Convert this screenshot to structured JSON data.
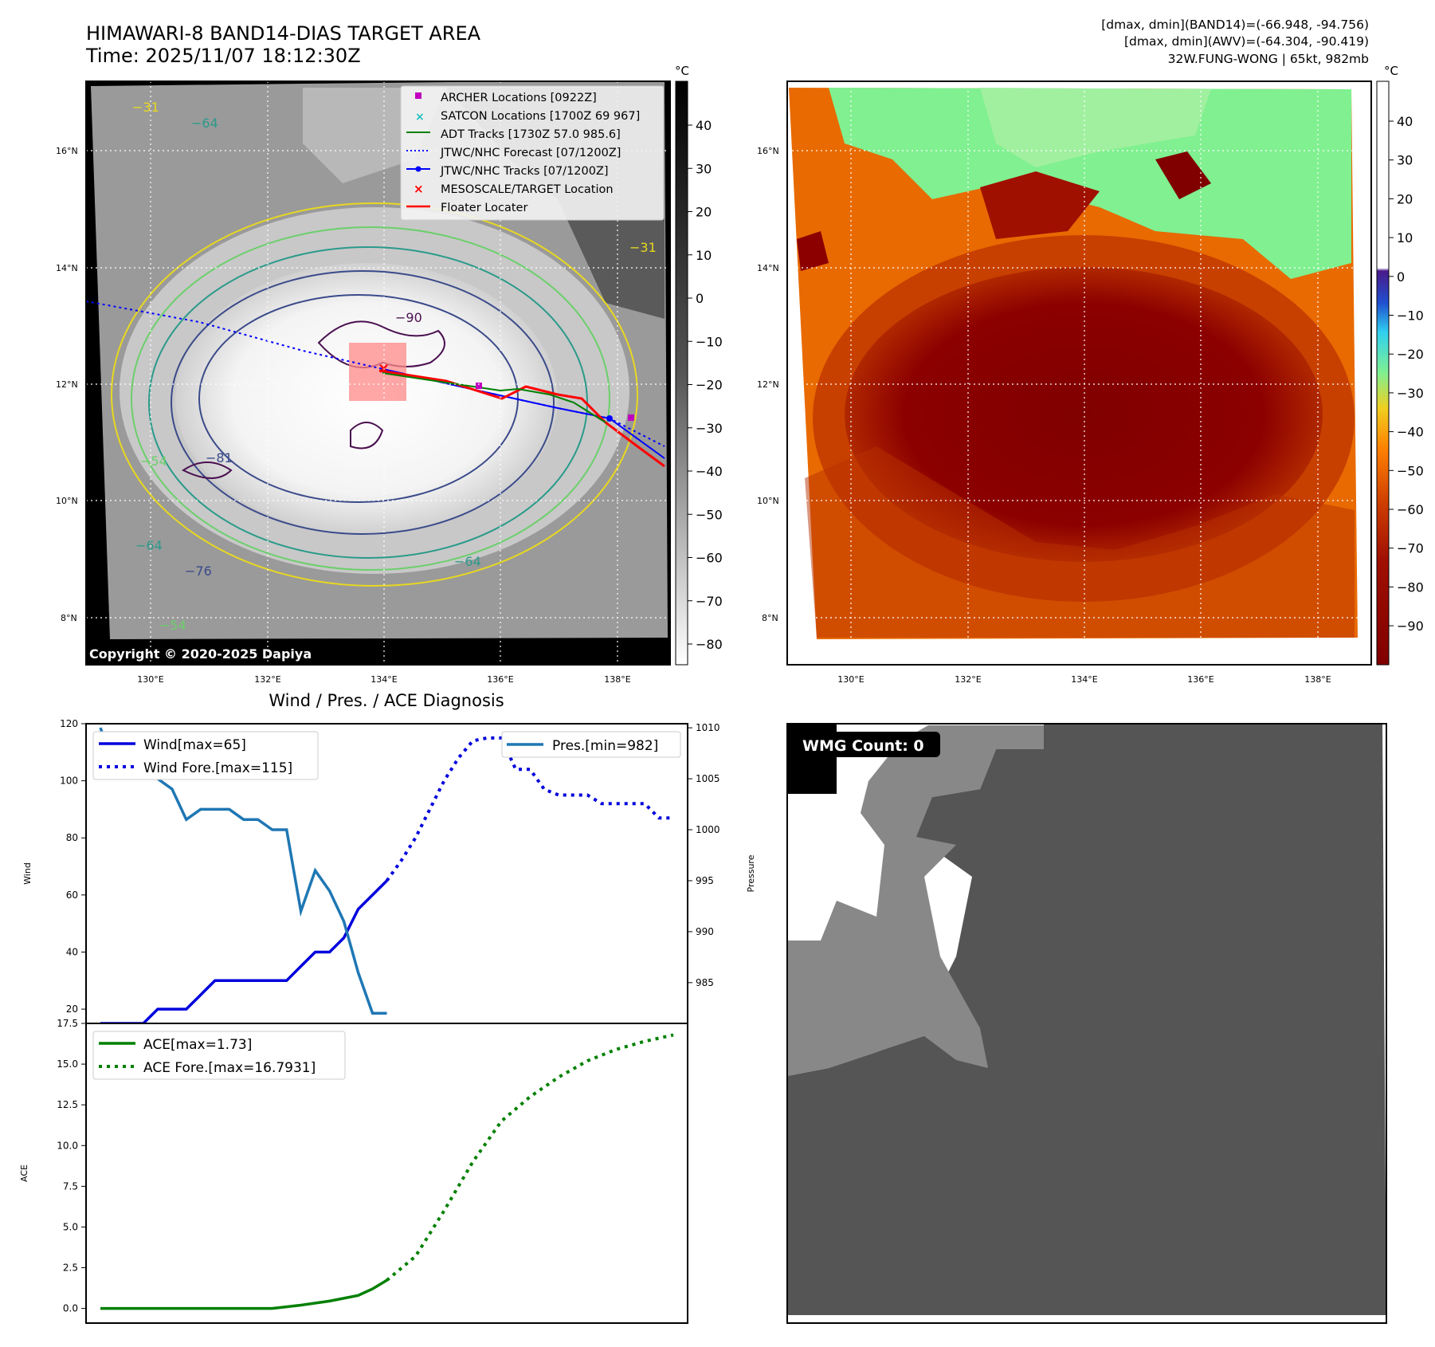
{
  "header": {
    "title": "HIMAWARI-8 BAND14-DIAS TARGET AREA",
    "time": "Time: 2025/11/07 18:12:30Z",
    "info": [
      "[dmax, dmin](BAND14)=(-66.948, -94.756)",
      "[dmax, dmin](AWV)=(-64.304, -90.419)",
      "32W.FUNG-WONG | 65kt, 982mb"
    ]
  },
  "map": {
    "lat_ticks": [
      "16°N",
      "14°N",
      "12°N",
      "10°N",
      "8°N"
    ],
    "lon_ticks": [
      "130°E",
      "132°E",
      "134°E",
      "136°E",
      "138°E"
    ],
    "contour_labels": [
      "−90",
      "−64",
      "−64",
      "−76",
      "−54",
      "−54",
      "−64",
      "−81",
      "−31",
      "−31"
    ],
    "copyright": "Copyright © 2020-2025 Dapiya",
    "legend": [
      {
        "label": "ARCHER Locations [0922Z]",
        "marker": "square",
        "color": "#c000c0"
      },
      {
        "label": "SATCON Locations [1700Z 69 967]",
        "marker": "x",
        "color": "#20c0c0"
      },
      {
        "label": "ADT Tracks [1730Z 57.0 985.6]",
        "marker": "line",
        "color": "#008000"
      },
      {
        "label": "JTWC/NHC Forecast [07/1200Z]",
        "marker": "dotted",
        "color": "#0000ff"
      },
      {
        "label": "JTWC/NHC Tracks [07/1200Z]",
        "marker": "line-dot",
        "color": "#0000ff"
      },
      {
        "label": "MESOSCALE/TARGET Location",
        "marker": "x",
        "color": "#ff0000"
      },
      {
        "label": "Floater Locater",
        "marker": "line",
        "color": "#ff0000"
      }
    ],
    "gray_colorbar": {
      "unit": "°C",
      "ticks": [
        "40",
        "30",
        "20",
        "10",
        "0",
        "−10",
        "−20",
        "−30",
        "−40",
        "−50",
        "−60",
        "−70",
        "−80"
      ]
    },
    "color_colorbar": {
      "unit": "°C",
      "ticks": [
        "40",
        "30",
        "20",
        "10",
        "0",
        "−10",
        "−20",
        "−30",
        "−40",
        "−50",
        "−60",
        "−70",
        "−80",
        "−90"
      ]
    }
  },
  "chart_data": [
    {
      "type": "line",
      "title": "Wind / Pres. / ACE Diagnosis",
      "ylabel": "Wind",
      "y2label": "Pressure",
      "ylim": [
        15,
        120
      ],
      "y2lim": [
        981,
        1010.4
      ],
      "yticks": [
        20,
        40,
        60,
        80,
        100,
        120
      ],
      "y2ticks": [
        985,
        990,
        995,
        1000,
        1005,
        1010
      ],
      "series": [
        {
          "name": "Wind[max=65]",
          "color": "#0000dd",
          "style": "solid",
          "axis": "left",
          "x": [
            0,
            1,
            2,
            3,
            4,
            5,
            6,
            7,
            8,
            9,
            10,
            11,
            12,
            13,
            14,
            15,
            16,
            17,
            18,
            19,
            20
          ],
          "y": [
            15,
            15,
            15,
            15,
            20,
            20,
            20,
            25,
            30,
            30,
            30,
            30,
            30,
            30,
            35,
            40,
            40,
            45,
            55,
            60,
            65
          ]
        },
        {
          "name": "Wind Fore.[max=115]",
          "color": "#0000dd",
          "style": "dotted",
          "axis": "left",
          "x": [
            20,
            21,
            22,
            23,
            24,
            25,
            26,
            27,
            28,
            29,
            30,
            31,
            32,
            33,
            34,
            35,
            36,
            37,
            38,
            39,
            40
          ],
          "y": [
            65,
            72,
            80,
            90,
            100,
            108,
            114,
            115,
            115,
            104,
            104,
            97,
            95,
            95,
            95,
            92,
            92,
            92,
            92,
            87,
            87
          ]
        },
        {
          "name": "Pres.[min=982]",
          "color": "#1f77b4",
          "style": "solid",
          "axis": "right",
          "x": [
            0,
            1,
            2,
            3,
            4,
            5,
            6,
            7,
            8,
            9,
            10,
            11,
            12,
            13,
            14,
            15,
            16,
            17,
            18,
            19,
            20
          ],
          "y": [
            1010,
            1006,
            1006,
            1006,
            1005,
            1004,
            1001,
            1002,
            1002,
            1002,
            1001,
            1001,
            1000,
            1000,
            992,
            996,
            994,
            991,
            986,
            982,
            982
          ]
        }
      ],
      "legend_labels": [
        "Wind[max=65]",
        "Wind Fore.[max=115]",
        "Pres.[min=982]"
      ]
    },
    {
      "type": "line",
      "ylabel": "ACE",
      "ylim": [
        -0.9,
        17.5
      ],
      "yticks": [
        "0.0",
        "2.5",
        "5.0",
        "7.5",
        "10.0",
        "12.5",
        "15.0",
        "17.5"
      ],
      "series": [
        {
          "name": "ACE[max=1.73]",
          "color": "#008000",
          "style": "solid",
          "x": [
            0,
            2,
            4,
            6,
            8,
            10,
            12,
            14,
            16,
            18,
            19,
            20
          ],
          "y": [
            0,
            0,
            0,
            0,
            0,
            0,
            0,
            0.2,
            0.45,
            0.8,
            1.2,
            1.73
          ]
        },
        {
          "name": "ACE Fore.[max=16.7931]",
          "color": "#008000",
          "style": "dotted",
          "x": [
            20,
            22,
            24,
            26,
            28,
            30,
            32,
            34,
            36,
            38,
            40
          ],
          "y": [
            1.73,
            3.2,
            6.0,
            9.0,
            11.5,
            13.0,
            14.2,
            15.2,
            15.9,
            16.4,
            16.79
          ]
        }
      ]
    }
  ],
  "wmg": {
    "label": "WMG Count: 0"
  }
}
